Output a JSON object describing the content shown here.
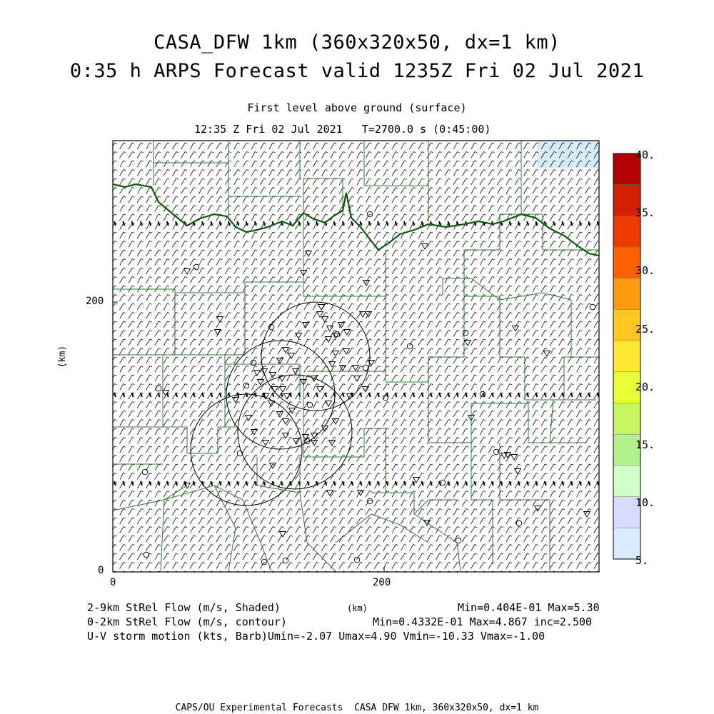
{
  "header": {
    "title_line1": "CASA_DFW 1km (360x320x50, dx=1 km)",
    "title_line2": "0:35 h ARPS Forecast valid 1235Z Fri 02 Jul 2021",
    "subtitle": "First level above ground (surface)",
    "time_line": "12:35 Z Fri 02 Jul 2021   T=2700.0 s (0:45:00)"
  },
  "axes": {
    "x_ticks": [
      "0",
      "200"
    ],
    "x_unit": "(km)",
    "y_ticks": [
      "0",
      "200"
    ],
    "y_unit": "(km)"
  },
  "colorbar": {
    "labels": [
      "40.",
      "35.",
      "30.",
      "25.",
      "20.",
      "15.",
      "10.",
      "5."
    ],
    "colors": [
      "#b30000",
      "#d42000",
      "#ee3a00",
      "#ff6000",
      "#ff9a10",
      "#ffc820",
      "#ffe833",
      "#e8ff33",
      "#c8f560",
      "#b4f08c",
      "#d2ffc8",
      "#d4dcff",
      "#d8ecff"
    ]
  },
  "footer": {
    "line1_left": "2-9km StRel Flow (m/s, Shaded)",
    "line1_unit": "(km)",
    "line1_right": "Min=0.404E-01 Max=5.30",
    "line2_left": "0-2km StRel Flow (m/s, contour)",
    "line2_right": "Min=0.4332E-01 Max=4.867 inc=2.500",
    "line3": "U-V storm motion (kts, Barb)Umin=-2.07 Umax=4.90 Vmin=-10.33 Vmax=-1.00",
    "credit": "CAPS/OU Experimental Forecasts  CASA DFW 1km, 360x320x50, dx=1 km"
  },
  "map": {
    "colors": {
      "county": "#2e7d32",
      "state_border": "#0b5a0b",
      "barb": "#111111",
      "shade_low": "#d8ecff"
    }
  }
}
